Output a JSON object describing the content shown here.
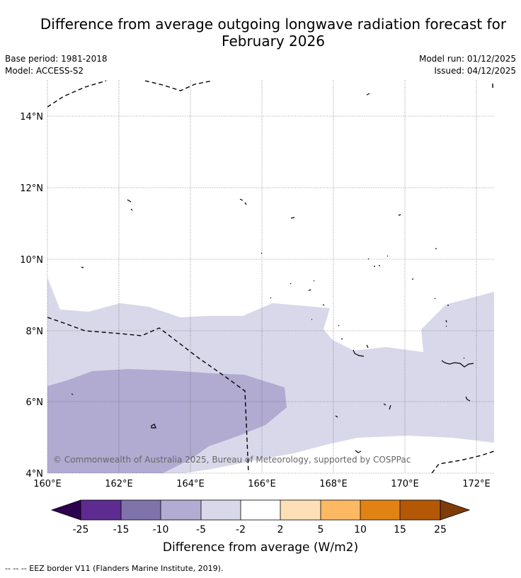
{
  "title": {
    "line1": "Difference from average outgoing longwave radiation forecast for",
    "line2": "February 2026"
  },
  "meta": {
    "base_period": "Base period: 1981-2018",
    "model": "Model: ACCESS-S2",
    "model_run": "Model run: 01/12/2025",
    "issued": "Issued: 04/12/2025"
  },
  "map": {
    "lon_labels": [
      "160°E",
      "162°E",
      "164°E",
      "166°E",
      "168°E",
      "170°E",
      "172°E"
    ],
    "lat_labels": [
      "14°N",
      "12°N",
      "10°N",
      "8°N",
      "6°N",
      "4°N"
    ],
    "lon_range": [
      160,
      172.5
    ],
    "lat_range": [
      4,
      15
    ],
    "copyright": "© Commonwealth of Australia 2025, Bureau of Meteorology, supported by COSPPac",
    "colors": {
      "minus5_to_minus2": "#d9d8ea",
      "minus10_to_minus5": "#b1aad1"
    }
  },
  "colorbar": {
    "tick_labels": [
      "-25",
      "-15",
      "-10",
      "-5",
      "-2",
      "2",
      "5",
      "10",
      "15",
      "25"
    ],
    "colors": [
      "#2d0050",
      "#5e2b91",
      "#8073ac",
      "#b2abd2",
      "#d9d8eb",
      "#ffffff",
      "#fee0b6",
      "#fdb863",
      "#e08214",
      "#b35806",
      "#7f3b08"
    ],
    "label": "Difference from average (W/m2)"
  },
  "legend": {
    "eez_line": "--  --  -- EEZ border V11 (Flanders Marine Institute, 2019)."
  }
}
